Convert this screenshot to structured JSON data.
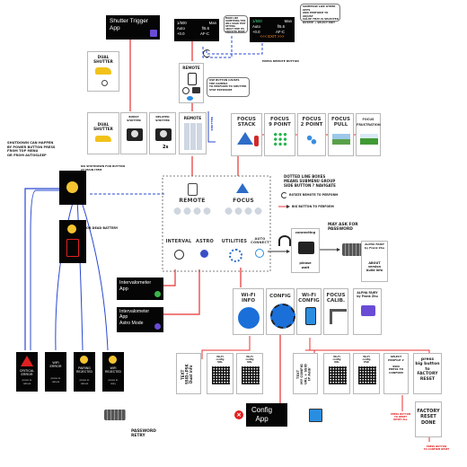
{
  "apps": {
    "shutter_trigger": "Shutter Trigger\nApp",
    "intervalometer": "Intervalometer\nApp",
    "intervalometer_astro": "Intervalometer\nApp\nAstro Mode",
    "config": "Config\nApp"
  },
  "screen_top": {
    "left": {
      "row1_l": "1/500",
      "row1_r": "Man",
      "row2_l": "Auto",
      "row2_m": "f/5.6",
      "row3_l": "+0.0",
      "row3_m": "AF-C"
    },
    "right": {
      "row1_l": "1/500",
      "row1_r": "Man",
      "row2_l": "Auto",
      "row2_m": "f/5.6",
      "row3_l": "+0.0",
      "row3_m": "AF-C",
      "exit": "<<< EXIT >>>"
    }
  },
  "notes": {
    "mode_note": "MORE LIKE SOMETHING THIS\nWILL SOLID THAT SETTING\nABOUT TIME ITS\nADJUSTED MODE",
    "screen_note": "SOMEHOW LIKE OTHER APPS\nAND PERFORM TO ADJUST\nVALUE THAT IS SELECTED\nROTATE + SELECT EDIT",
    "press_remote": "PRESS REMOTE BUTTON",
    "bubble_remote": "USE BUTTON CAUSES\nTHE CAMERA\nTO PERFORM TO SHUTTER\nSTAY EXPOSURE",
    "shutdown": "SHUTDOWN CAN HAPPEN\nBY POWER BUTTON PRESS\nFROM TOP MENU\nOR FROM AUTOSLEEP",
    "no_sleep": "NO SHUTDOWN FOR BUTTON\nAT MAIN ITEM",
    "dead_battery": "OR DEAD BATTERY",
    "shutter_hint": "SHUTTER",
    "legend_dotted": "DOTTED LINE BOXES\nMEANS SUBMENU GROUP\nSIDE BUTTON ? NAVIGATE",
    "legend_rotate": "ROTATE REMOTE TO PERFORM",
    "legend_big": "BIG BUTTON TO PERFORM",
    "password": "MAY ASK FOR\nPASSWORD",
    "connecting": "connecting",
    "please_wait": "please\nwait",
    "factory_red1": "PRESS BUTTON\nTO RESET\nRESET ALL",
    "factory_red2": "PRESS BUTTON\nTO CONFIRM RESET"
  },
  "tiles": {
    "remote": "REMOTE",
    "focus": "FOCUS",
    "interval": "INTERVAL",
    "astro": "ASTRO",
    "utilities": "UTILITIES",
    "auto_connect": "AUTO\nCONNECT"
  },
  "shutter_row": [
    {
      "label": "DUAL\nSHUTTER"
    },
    {
      "label": "BURST\nSHUTTER"
    },
    {
      "label": "DELAYED\nSHUTTER"
    },
    {
      "label": "REMOTE"
    }
  ],
  "focus_row": [
    {
      "title": "FOCUS\nSTACK"
    },
    {
      "title": "FOCUS\n9 POINT"
    },
    {
      "title": "FOCUS\n2 POINT"
    },
    {
      "title": "FOCUS\nPULL"
    },
    {
      "title": "FOCUS\nFRUSTRATION"
    }
  ],
  "utility_row": [
    {
      "title": "Wi-Fi\nINFO"
    },
    {
      "title": "CONFIG"
    },
    {
      "title": "Wi-Fi\nCONFIG"
    },
    {
      "title": "FOCUS\nCALIB."
    },
    {
      "title": "ALPHA FAIRY\nby Frank Zhu"
    }
  ],
  "about": {
    "title": "ALPHA FAIRY\nby Frank Zhu",
    "line": "ABOUT\nversion\nbuild info"
  },
  "error_screens": [
    {
      "title": "CRITICAL\nERROR",
      "sub": "press to\nreboot"
    },
    {
      "title": "WiFi\nERROR",
      "sub": "press to\nreboot"
    },
    {
      "title": "PAIRING\nREJECTED",
      "sub": "press to\nreboot"
    },
    {
      "title": "WiFi\nREJECTED",
      "sub": "press to\nretry"
    }
  ],
  "password_retry": "PASSWORD\nRETRY",
  "bottom_cards": [
    {
      "label": "TEXT\nSSID+PSK\nDual info"
    },
    {
      "label": "Wi-Fi\nconfig\nURL"
    },
    {
      "label": "Wi-Fi\nconfig\nURL"
    },
    {
      "label": "TEXT\nMY CONFIG\nURL + SSID\nIP Addr"
    },
    {
      "label": "Wi-Fi\nconfig\nURL"
    },
    {
      "label": "Wi-Fi\nconfig\nPSK"
    },
    {
      "label": "SELECT\nPROFILE #\n\nSSID\nPRESS TO\nCONFIRM"
    },
    {
      "label": "press\nbig button\nto\nFACTORY\nRESET"
    },
    {
      "label": "FACTORY\nRESET\nDONE"
    }
  ],
  "colors": {
    "red_wire": "#e83030",
    "blue_wire": "#2848d0",
    "black_card": "#050505",
    "screen_green": "#3fe08a",
    "screen_orange": "#ff8a1f"
  }
}
